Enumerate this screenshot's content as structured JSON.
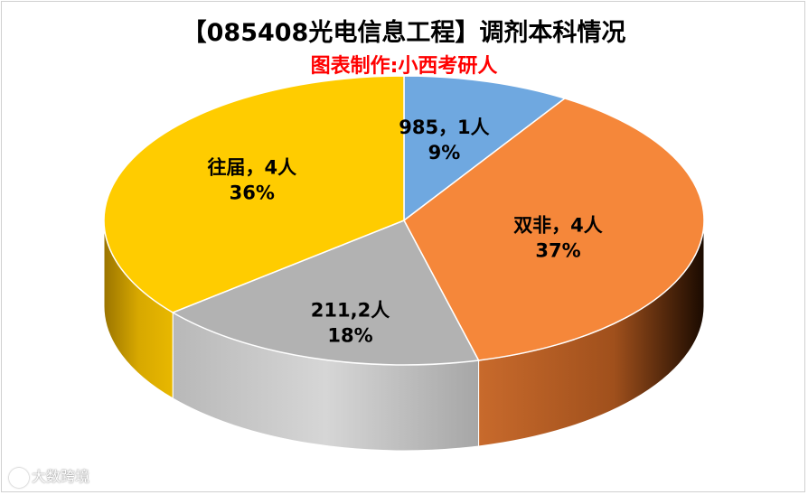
{
  "chart": {
    "title": "【085408光电信息工程】调剂本科情况",
    "subtitle": "图表制作:小西考研人",
    "subtitle_color": "#ff0000",
    "watermark": "大数跨境"
  },
  "chart_data": {
    "type": "pie",
    "style": "3d",
    "title": "【085408光电信息工程】调剂本科情况",
    "subtitle": "图表制作:小西考研人",
    "legend": "none",
    "slices": [
      {
        "category": "985",
        "count": 1,
        "percent": 9,
        "label": "985，1人",
        "pct_label": "9%",
        "color": "#6fa8e0"
      },
      {
        "category": "双非",
        "count": 4,
        "percent": 37,
        "label": "双非，4人",
        "pct_label": "37%",
        "color": "#f5873a"
      },
      {
        "category": "211",
        "count": 2,
        "percent": 18,
        "label": "211,2人",
        "pct_label": "18%",
        "color": "#b2b2b2"
      },
      {
        "category": "往届",
        "count": 4,
        "percent": 36,
        "label": "往届，4人",
        "pct_label": "36%",
        "color": "#ffcc00"
      }
    ]
  }
}
